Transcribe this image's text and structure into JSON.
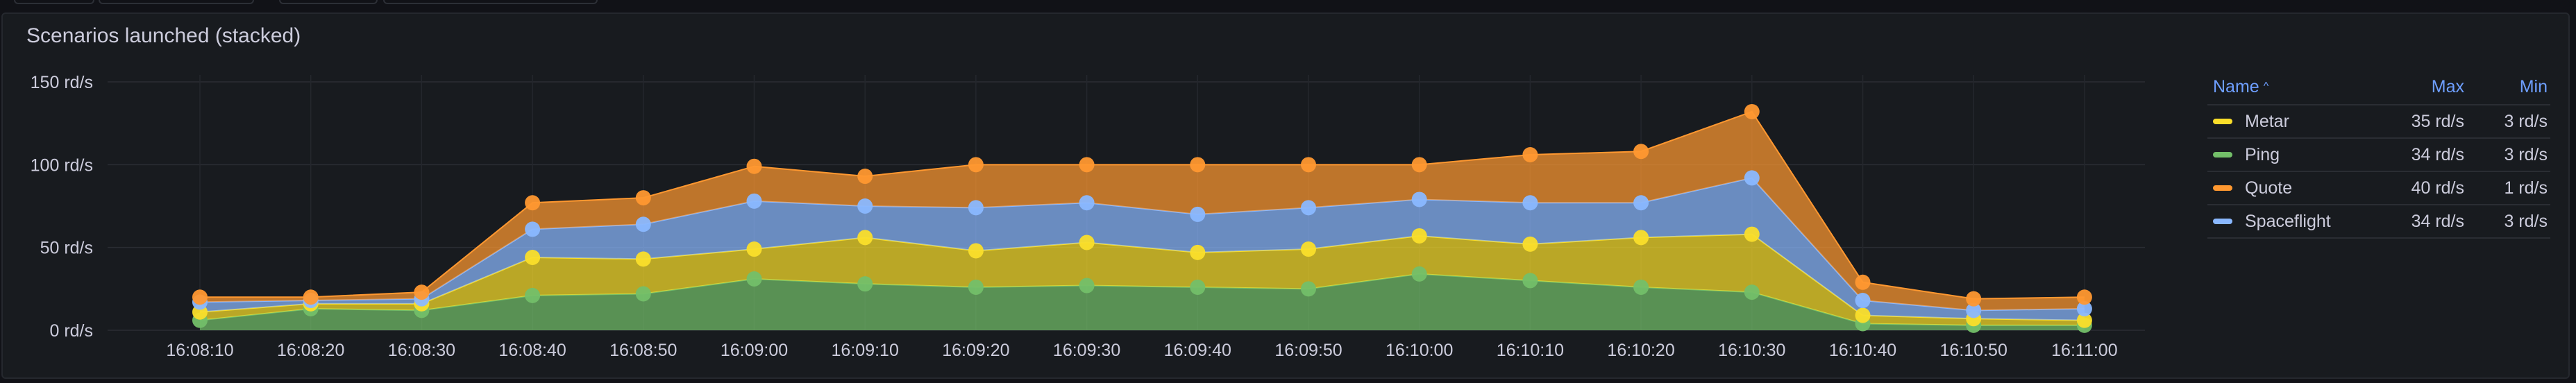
{
  "panel": {
    "title": "Scenarios launched (stacked)"
  },
  "legend": {
    "header": {
      "name": "Name",
      "max": "Max",
      "min": "Min"
    },
    "rows": [
      {
        "name": "Metar",
        "max": "35 rd/s",
        "min": "3 rd/s",
        "color": "#FADE2A"
      },
      {
        "name": "Ping",
        "max": "34 rd/s",
        "min": "3 rd/s",
        "color": "#73BF69"
      },
      {
        "name": "Quote",
        "max": "40 rd/s",
        "min": "1 rd/s",
        "color": "#FF9830"
      },
      {
        "name": "Spaceflight",
        "max": "34 rd/s",
        "min": "3 rd/s",
        "color": "#8AB8FF"
      }
    ]
  },
  "chart_data": {
    "type": "area",
    "stacked": true,
    "title": "Scenarios launched (stacked)",
    "unit": "rd/s",
    "ylim": [
      0,
      150
    ],
    "y_ticks": [
      "0 rd/s",
      "50 rd/s",
      "100 rd/s",
      "150 rd/s"
    ],
    "x": [
      "16:08:10",
      "16:08:20",
      "16:08:30",
      "16:08:40",
      "16:08:50",
      "16:09:00",
      "16:09:10",
      "16:09:20",
      "16:09:30",
      "16:09:40",
      "16:09:50",
      "16:10:00",
      "16:10:10",
      "16:10:20",
      "16:10:30",
      "16:10:40",
      "16:10:50",
      "16:11:00"
    ],
    "grid": true,
    "legend_position": "right",
    "series": [
      {
        "name": "Ping",
        "color": "#73BF69",
        "values": [
          6,
          13,
          12,
          21,
          22,
          31,
          28,
          26,
          27,
          26,
          25,
          34,
          30,
          26,
          23,
          4,
          3,
          3
        ]
      },
      {
        "name": "Metar",
        "color": "#FADE2A",
        "values": [
          5,
          3,
          4,
          23,
          21,
          18,
          28,
          22,
          26,
          21,
          24,
          23,
          22,
          30,
          35,
          5,
          4,
          3
        ]
      },
      {
        "name": "Spaceflight",
        "color": "#8AB8FF",
        "values": [
          6,
          2,
          3,
          17,
          21,
          29,
          19,
          26,
          24,
          23,
          25,
          22,
          25,
          21,
          34,
          9,
          5,
          7
        ]
      },
      {
        "name": "Quote",
        "color": "#FF9830",
        "values": [
          3,
          2,
          4,
          16,
          16,
          21,
          18,
          26,
          23,
          30,
          26,
          21,
          29,
          31,
          40,
          11,
          7,
          7
        ]
      }
    ]
  }
}
